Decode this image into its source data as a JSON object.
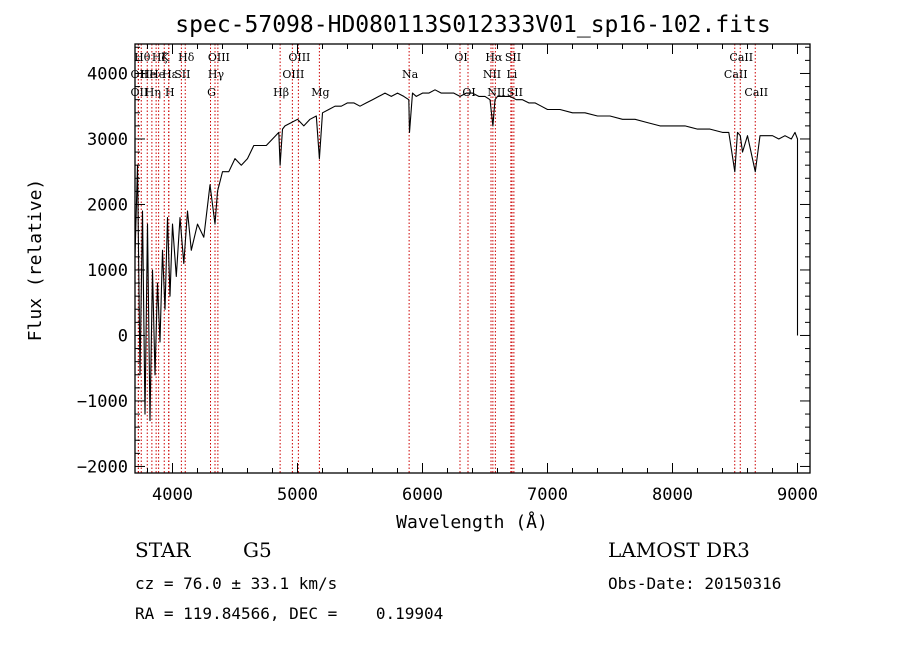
{
  "chart_data": {
    "type": "line",
    "title": "spec-57098-HD080113S012333V01_sp16-102.fits",
    "xlabel": "Wavelength (Å)",
    "ylabel": "Flux (relative)",
    "xlim": [
      3700,
      9100
    ],
    "ylim": [
      -2100,
      4450
    ],
    "xticks": [
      4000,
      5000,
      6000,
      7000,
      8000,
      9000
    ],
    "yticks": [
      -2000,
      -1000,
      0,
      1000,
      2000,
      3000,
      4000
    ],
    "x_minor_step": 200,
    "y_minor_step": 200,
    "series": [
      {
        "name": "spectrum",
        "color": "#000000",
        "x": [
          3700,
          3720,
          3740,
          3760,
          3780,
          3800,
          3820,
          3840,
          3860,
          3880,
          3900,
          3920,
          3940,
          3960,
          3980,
          4000,
          4030,
          4060,
          4090,
          4120,
          4150,
          4200,
          4250,
          4300,
          4340,
          4360,
          4400,
          4450,
          4500,
          4550,
          4600,
          4650,
          4700,
          4750,
          4800,
          4850,
          4861,
          4880,
          4900,
          4950,
          5000,
          5050,
          5100,
          5150,
          5175,
          5200,
          5250,
          5300,
          5350,
          5400,
          5450,
          5500,
          5550,
          5600,
          5650,
          5700,
          5750,
          5800,
          5850,
          5890,
          5896,
          5920,
          5950,
          6000,
          6050,
          6100,
          6150,
          6200,
          6250,
          6300,
          6350,
          6400,
          6450,
          6500,
          6540,
          6563,
          6580,
          6600,
          6650,
          6700,
          6750,
          6800,
          6850,
          6900,
          6950,
          7000,
          7100,
          7200,
          7300,
          7400,
          7500,
          7600,
          7700,
          7800,
          7900,
          8000,
          8100,
          8200,
          8300,
          8400,
          8450,
          8498,
          8520,
          8542,
          8560,
          8600,
          8662,
          8700,
          8750,
          8800,
          8850,
          8900,
          8950,
          8980,
          9000,
          9000
        ],
        "y": [
          1200,
          2600,
          -600,
          1900,
          -1200,
          1700,
          -1300,
          1000,
          -600,
          800,
          -100,
          1300,
          400,
          1800,
          600,
          1700,
          900,
          1800,
          1100,
          1900,
          1300,
          1700,
          1500,
          2300,
          1700,
          2200,
          2500,
          2500,
          2700,
          2600,
          2700,
          2900,
          2900,
          2900,
          3000,
          3100,
          2600,
          3150,
          3200,
          3250,
          3300,
          3200,
          3300,
          3350,
          2700,
          3400,
          3450,
          3500,
          3500,
          3550,
          3550,
          3500,
          3550,
          3600,
          3650,
          3700,
          3650,
          3700,
          3650,
          3600,
          3100,
          3700,
          3650,
          3700,
          3700,
          3750,
          3700,
          3700,
          3700,
          3650,
          3700,
          3700,
          3650,
          3650,
          3600,
          3200,
          3600,
          3650,
          3650,
          3650,
          3600,
          3600,
          3550,
          3550,
          3500,
          3450,
          3450,
          3400,
          3400,
          3350,
          3350,
          3300,
          3300,
          3250,
          3200,
          3200,
          3200,
          3150,
          3150,
          3100,
          3100,
          2500,
          3100,
          3050,
          2800,
          3050,
          2500,
          3050,
          3050,
          3050,
          3000,
          3050,
          3000,
          3100,
          3000,
          0
        ]
      }
    ],
    "lines": [
      {
        "x": 3750,
        "label": "Hθ",
        "row": 0
      },
      {
        "x": 3727,
        "label": "OII",
        "row": 1
      },
      {
        "x": 3727,
        "label": "OII",
        "row": 2
      },
      {
        "x": 3798,
        "label": "He",
        "row": 1
      },
      {
        "x": 3835,
        "label": "Hη",
        "row": 2
      },
      {
        "x": 3869,
        "label": "He",
        "row": 1
      },
      {
        "x": 3889,
        "label": "Hζ",
        "row": 0
      },
      {
        "x": 3934,
        "label": "K",
        "row": 0
      },
      {
        "x": 3970,
        "label": "H",
        "row": 2
      },
      {
        "x": 3970,
        "label": "Hε",
        "row": 1
      },
      {
        "x": 4071,
        "label": "SII",
        "row": 1
      },
      {
        "x": 4102,
        "label": "Hδ",
        "row": 0
      },
      {
        "x": 4304,
        "label": "G",
        "row": 2
      },
      {
        "x": 4340,
        "label": "Hγ",
        "row": 1
      },
      {
        "x": 4363,
        "label": "OIII",
        "row": 0
      },
      {
        "x": 4861,
        "label": "Hβ",
        "row": 2
      },
      {
        "x": 4959,
        "label": "OIII",
        "row": 1
      },
      {
        "x": 5007,
        "label": "OIII",
        "row": 0
      },
      {
        "x": 5175,
        "label": "Mg",
        "row": 2
      },
      {
        "x": 5893,
        "label": "Na",
        "row": 1
      },
      {
        "x": 6300,
        "label": "OI",
        "row": 0
      },
      {
        "x": 6364,
        "label": "OI",
        "row": 2
      },
      {
        "x": 6548,
        "label": "NII",
        "row": 1
      },
      {
        "x": 6563,
        "label": "Hα",
        "row": 0
      },
      {
        "x": 6583,
        "label": "NII",
        "row": 2
      },
      {
        "x": 6707,
        "label": "Li",
        "row": 1
      },
      {
        "x": 6716,
        "label": "SII",
        "row": 0
      },
      {
        "x": 6731,
        "label": "SII",
        "row": 2
      },
      {
        "x": 8498,
        "label": "CaII",
        "row": 1
      },
      {
        "x": 8542,
        "label": "CaII",
        "row": 0
      },
      {
        "x": 8662,
        "label": "CaII",
        "row": 2
      }
    ]
  },
  "info": {
    "object_class": "STAR",
    "subclass": "G5",
    "survey": "LAMOST DR3",
    "redshift": "cz = 76.0 ± 33.1 km/s",
    "obs_date": "Obs-Date: 20150316",
    "coords": "RA = 119.84566, DEC =    0.19904"
  },
  "colors": {
    "line_marker": "#cc0000",
    "axis": "#000000"
  }
}
